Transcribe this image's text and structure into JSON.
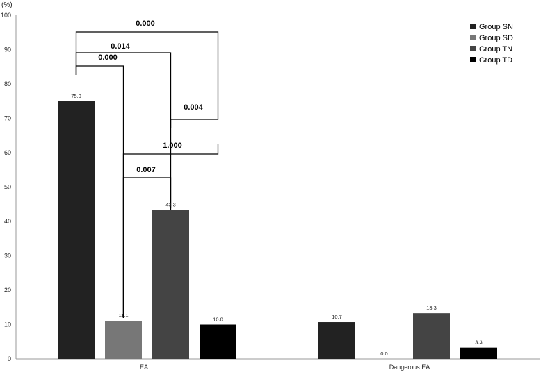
{
  "chart_data": {
    "type": "bar",
    "ylabel": "(%)",
    "ylim": [
      0,
      100
    ],
    "yticks": [
      0,
      10,
      20,
      30,
      40,
      50,
      60,
      70,
      80,
      90,
      100
    ],
    "categories": [
      "EA",
      "Dangerous EA"
    ],
    "series": [
      {
        "name": "Group SN",
        "color": "#222222",
        "values": [
          75.0,
          10.7
        ],
        "labels": [
          "75.0",
          "10.7"
        ]
      },
      {
        "name": "Group SD",
        "color": "#777777",
        "values": [
          11.1,
          0.0
        ],
        "labels": [
          "11.1",
          "0.0"
        ]
      },
      {
        "name": "Group TN",
        "color": "#444444",
        "values": [
          43.3,
          13.3
        ],
        "labels": [
          "43.3",
          "13.3"
        ]
      },
      {
        "name": "Group TD",
        "color": "#000000",
        "values": [
          10.0,
          3.3
        ],
        "labels": [
          "10.0",
          "3.3"
        ]
      }
    ],
    "legend": "top-right",
    "grid": false,
    "comparisons": [
      {
        "category": "EA",
        "from": "Group SN",
        "to": "Group SD",
        "p": "0.000"
      },
      {
        "category": "EA",
        "from": "Group SN",
        "to": "Group TN",
        "p": "0.014"
      },
      {
        "category": "EA",
        "from": "Group SN",
        "to": "Group TD",
        "p": "0.000"
      },
      {
        "category": "EA",
        "from": "Group TN",
        "to": "Group TD",
        "p": "0.004"
      },
      {
        "category": "EA",
        "from": "Group SD",
        "to": "Group TD",
        "p": "1.000"
      },
      {
        "category": "EA",
        "from": "Group SD",
        "to": "Group TN",
        "p": "0.007"
      }
    ]
  }
}
